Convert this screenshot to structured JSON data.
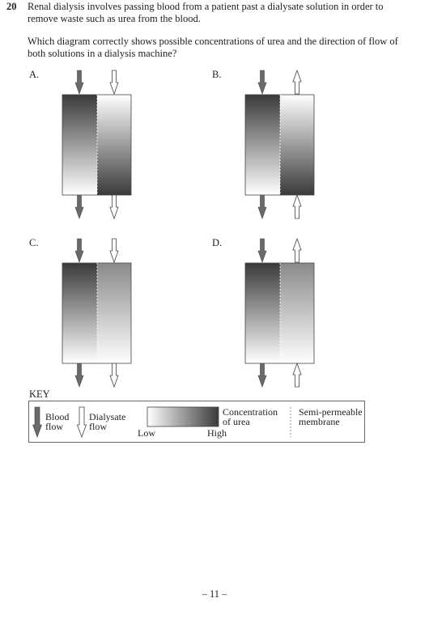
{
  "question": {
    "number": "20",
    "intro": "Renal dialysis involves passing blood from a patient past a dialysate solution in order to remove waste such as urea from the blood.",
    "prompt": "Which diagram correctly shows possible concentrations of urea and the direction of flow of both solutions in a dialysis machine?"
  },
  "options": [
    {
      "label": "A.",
      "blood_gradient": "high-to-low",
      "dialysate_gradient": "low-to-high",
      "dialysate_flow": "down"
    },
    {
      "label": "B.",
      "blood_gradient": "high-to-low",
      "dialysate_gradient": "low-to-high",
      "dialysate_flow": "up"
    },
    {
      "label": "C.",
      "blood_gradient": "high-to-low",
      "dialysate_gradient": "medium-to-low",
      "dialysate_flow": "down"
    },
    {
      "label": "D.",
      "blood_gradient": "high-to-low",
      "dialysate_gradient": "medium-to-low",
      "dialysate_flow": "up"
    }
  ],
  "key": {
    "title": "KEY",
    "blood_label_1": "Blood",
    "blood_label_2": "flow",
    "dialysate_label_1": "Dialysate",
    "dialysate_label_2": "flow",
    "low_label": "Low",
    "high_label": "High",
    "concentration_label_1": "Concentration",
    "concentration_label_2": "of urea",
    "membrane_label_1": "Semi-permeable",
    "membrane_label_2": "membrane"
  },
  "page_number": "– 11 –",
  "colors": {
    "dark": "#3a3a3a",
    "light": "#ffffff",
    "blood_arrow": "#6a6a6a"
  }
}
